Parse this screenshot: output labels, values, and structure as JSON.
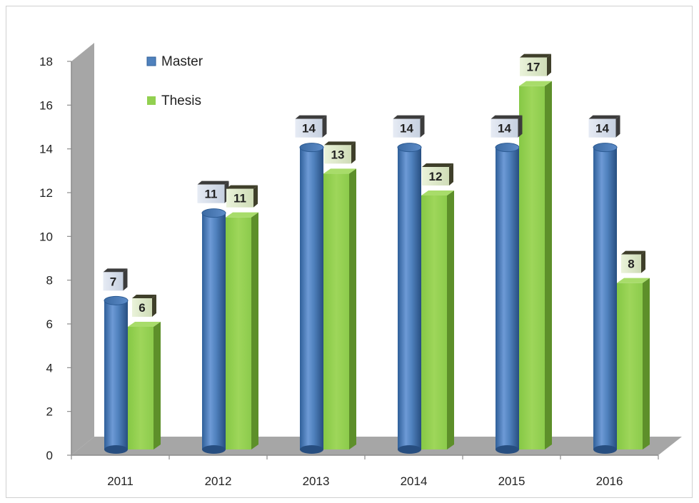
{
  "chart_data": {
    "type": "bar",
    "categories": [
      "2011",
      "2012",
      "2013",
      "2014",
      "2015",
      "2016"
    ],
    "series": [
      {
        "name": "Master",
        "values": [
          7,
          11,
          14,
          14,
          14,
          14
        ],
        "color": "#4f81bd"
      },
      {
        "name": "Thesis",
        "values": [
          6,
          11,
          13,
          12,
          17,
          8
        ],
        "color": "#92d050"
      }
    ],
    "ylim": [
      0,
      18
    ],
    "yticks": [
      0,
      2,
      4,
      6,
      8,
      10,
      12,
      14,
      16,
      18
    ],
    "grid": false,
    "legend_position": "top-left",
    "data_labels": true,
    "style": "3d-cylinder"
  }
}
